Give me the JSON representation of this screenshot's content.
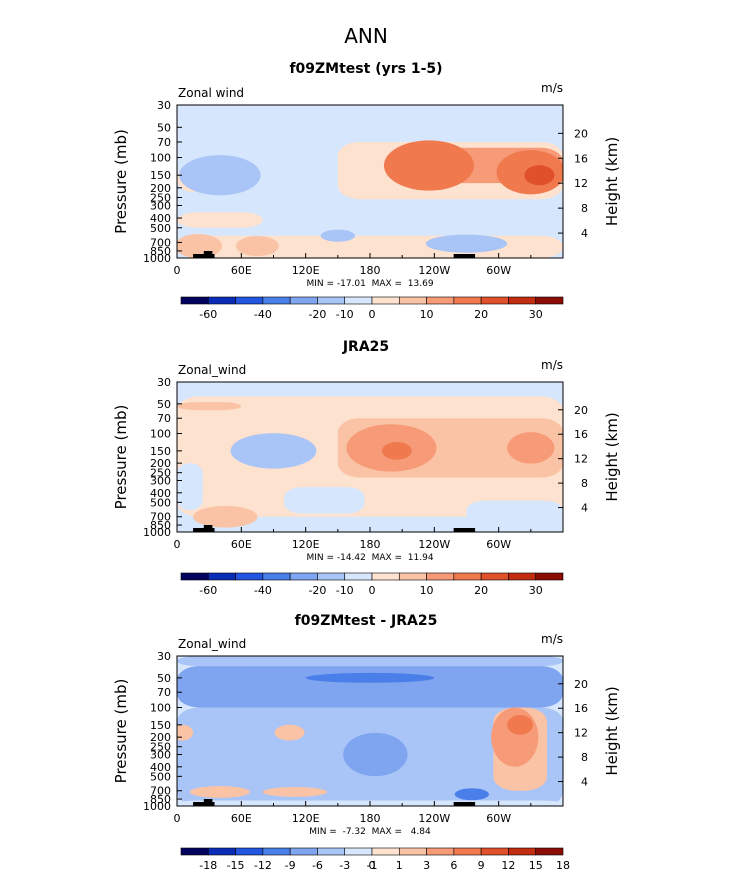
{
  "figure": {
    "title": "ANN"
  },
  "chart_data": [
    {
      "type": "heatmap",
      "title": "f09ZMtest (yrs 1-5)",
      "variable_label": "Zonal wind",
      "units": "m/s",
      "ylabel": "Pressure (mb)",
      "ylabel_right": "Height (km)",
      "x_ticks": [
        "0",
        "60E",
        "120E",
        "180",
        "120W",
        "60W"
      ],
      "x_tick_values": [
        0,
        60,
        120,
        180,
        240,
        300
      ],
      "x_range": [
        0,
        360
      ],
      "y_ticks": [
        "30",
        "50",
        "70",
        "100",
        "150",
        "200",
        "250",
        "300",
        "400",
        "500",
        "700",
        "850",
        "1000"
      ],
      "y_tick_values": [
        30,
        50,
        70,
        100,
        150,
        200,
        250,
        300,
        400,
        500,
        700,
        850,
        1000
      ],
      "y_range": [
        30,
        1000
      ],
      "y_scale": "log",
      "height_ticks": [
        "4",
        "8",
        "12",
        "16",
        "20"
      ],
      "height_tick_values": [
        4,
        8,
        12,
        16,
        20
      ],
      "stats": "MIN = -17.01  MAX =  13.69",
      "colorbar": {
        "colors": [
          "#03045e",
          "#0a2db8",
          "#2256e0",
          "#4a7ee8",
          "#7fa4f0",
          "#a9c4f6",
          "#d6e6fc",
          "#fde2cf",
          "#fbc3a5",
          "#f69a78",
          "#f07a4e",
          "#e0502a",
          "#c22c10",
          "#8b0c04"
        ],
        "labels": [
          "-60",
          "-40",
          "-20",
          "-10",
          "0",
          "10",
          "20",
          "30"
        ],
        "label_boundaries": [
          1,
          3,
          5,
          6,
          7,
          9,
          11,
          13
        ]
      },
      "features": [
        {
          "lon": 40,
          "p": 150,
          "dlon": 14,
          "dlogp": 0.09,
          "level": 4
        },
        {
          "lon": 40,
          "p": 150,
          "dlon": 38,
          "dlogp": 0.2,
          "level": 5
        },
        {
          "lon": 235,
          "p": 120,
          "dlon": 42,
          "dlogp": 0.25,
          "level": 10
        },
        {
          "lon": 330,
          "p": 140,
          "dlon": 32,
          "dlogp": 0.22,
          "level": 10
        },
        {
          "lon": 338,
          "p": 150,
          "dlon": 14,
          "dlogp": 0.1,
          "level": 11
        },
        {
          "lon": 20,
          "p": 760,
          "dlon": 22,
          "dlogp": 0.12,
          "level": 8
        },
        {
          "lon": 75,
          "p": 760,
          "dlon": 20,
          "dlogp": 0.1,
          "level": 8
        },
        {
          "lon": 270,
          "p": 720,
          "dlon": 38,
          "dlogp": 0.09,
          "level": 5
        },
        {
          "lon": 150,
          "p": 600,
          "dlon": 16,
          "dlogp": 0.06,
          "level": 5
        }
      ],
      "bands": [
        {
          "lon0": 150,
          "lon1": 360,
          "p0": 70,
          "p1": 260,
          "level": 7
        },
        {
          "lon0": 210,
          "lon1": 360,
          "p0": 80,
          "p1": 180,
          "level": 9
        },
        {
          "lon0": 0,
          "lon1": 360,
          "p0": 600,
          "p1": 1000,
          "level": 7
        },
        {
          "lon0": 0,
          "lon1": 80,
          "p0": 350,
          "p1": 500,
          "level": 7
        },
        {
          "lon0": 0,
          "lon1": 28,
          "p0": 120,
          "p1": 220,
          "level": 7
        }
      ]
    },
    {
      "type": "heatmap",
      "title": "JRA25",
      "variable_label": "Zonal_wind",
      "units": "m/s",
      "ylabel": "Pressure (mb)",
      "ylabel_right": "Height (km)",
      "x_ticks": [
        "0",
        "60E",
        "120E",
        "180",
        "120W",
        "60W"
      ],
      "x_tick_values": [
        0,
        60,
        120,
        180,
        240,
        300
      ],
      "x_range": [
        0,
        360
      ],
      "y_ticks": [
        "30",
        "50",
        "70",
        "100",
        "150",
        "200",
        "250",
        "300",
        "400",
        "500",
        "700",
        "850",
        "1000"
      ],
      "y_tick_values": [
        30,
        50,
        70,
        100,
        150,
        200,
        250,
        300,
        400,
        500,
        700,
        850,
        1000
      ],
      "y_range": [
        30,
        1000
      ],
      "y_scale": "log",
      "height_ticks": [
        "4",
        "8",
        "12",
        "16",
        "20"
      ],
      "height_tick_values": [
        4,
        8,
        12,
        16,
        20
      ],
      "stats": "MIN = -14.42  MAX =  11.94",
      "colorbar": {
        "colors": [
          "#03045e",
          "#0a2db8",
          "#2256e0",
          "#4a7ee8",
          "#7fa4f0",
          "#a9c4f6",
          "#d6e6fc",
          "#fde2cf",
          "#fbc3a5",
          "#f69a78",
          "#f07a4e",
          "#e0502a",
          "#c22c10",
          "#8b0c04"
        ],
        "labels": [
          "-60",
          "-40",
          "-20",
          "-10",
          "0",
          "10",
          "20",
          "30"
        ],
        "label_boundaries": [
          1,
          3,
          5,
          6,
          7,
          9,
          11,
          13
        ]
      },
      "features": [
        {
          "lon": 90,
          "p": 150,
          "dlon": 40,
          "dlogp": 0.18,
          "level": 5
        },
        {
          "lon": 200,
          "p": 140,
          "dlon": 42,
          "dlogp": 0.24,
          "level": 9
        },
        {
          "lon": 205,
          "p": 150,
          "dlon": 14,
          "dlogp": 0.09,
          "level": 10
        },
        {
          "lon": 330,
          "p": 140,
          "dlon": 22,
          "dlogp": 0.16,
          "level": 9
        },
        {
          "lon": 45,
          "p": 700,
          "dlon": 30,
          "dlogp": 0.11,
          "level": 8
        }
      ],
      "bands": [
        {
          "lon0": 0,
          "lon1": 360,
          "p0": 42,
          "p1": 700,
          "level": 7
        },
        {
          "lon0": 0,
          "lon1": 60,
          "p0": 48,
          "p1": 58,
          "level": 8
        },
        {
          "lon0": 150,
          "lon1": 360,
          "p0": 70,
          "p1": 280,
          "level": 8
        }
      ],
      "base_level": 6,
      "negative_patches": [
        {
          "lon0": 0,
          "lon1": 24,
          "p0": 200,
          "p1": 600
        },
        {
          "lon0": 100,
          "lon1": 175,
          "p0": 350,
          "p1": 650
        },
        {
          "lon0": 270,
          "lon1": 360,
          "p0": 480,
          "p1": 1000
        }
      ]
    },
    {
      "type": "heatmap",
      "title": "f09ZMtest - JRA25",
      "variable_label": "Zonal_wind",
      "units": "m/s",
      "ylabel": "Pressure (mb)",
      "ylabel_right": "Height (km)",
      "x_ticks": [
        "0",
        "60E",
        "120E",
        "180",
        "120W",
        "60W"
      ],
      "x_tick_values": [
        0,
        60,
        120,
        180,
        240,
        300
      ],
      "x_range": [
        0,
        360
      ],
      "y_ticks": [
        "30",
        "50",
        "70",
        "100",
        "150",
        "200",
        "250",
        "300",
        "400",
        "500",
        "700",
        "850",
        "1000"
      ],
      "y_tick_values": [
        30,
        50,
        70,
        100,
        150,
        200,
        250,
        300,
        400,
        500,
        700,
        850,
        1000
      ],
      "y_range": [
        30,
        1000
      ],
      "y_scale": "log",
      "height_ticks": [
        "4",
        "8",
        "12",
        "16",
        "20"
      ],
      "height_tick_values": [
        4,
        8,
        12,
        16,
        20
      ],
      "stats": "MIN =  -7.32  MAX =   4.84",
      "colorbar": {
        "colors": [
          "#03045e",
          "#0a2db8",
          "#2256e0",
          "#4a7ee8",
          "#7fa4f0",
          "#a9c4f6",
          "#d6e6fc",
          "#fde2cf",
          "#fbc3a5",
          "#f69a78",
          "#f07a4e",
          "#e0502a",
          "#c22c10",
          "#8b0c04"
        ],
        "labels": [
          "-18",
          "-15",
          "-12",
          "-9",
          "-6",
          "-3",
          "-1",
          "0",
          "1",
          "3",
          "6",
          "9",
          "12",
          "15",
          "18"
        ],
        "label_boundaries": [
          1,
          2,
          3,
          4,
          5,
          6,
          7,
          7,
          8,
          9,
          10,
          11,
          12,
          13,
          14
        ]
      },
      "features": [
        {
          "lon": 180,
          "p": 50,
          "dlon": 60,
          "dlogp": 0.05,
          "level": 3
        },
        {
          "lon": 185,
          "p": 300,
          "dlon": 30,
          "dlogp": 0.22,
          "level": 4
        },
        {
          "lon": 315,
          "p": 200,
          "dlon": 22,
          "dlogp": 0.3,
          "level": 9
        },
        {
          "lon": 320,
          "p": 150,
          "dlon": 12,
          "dlogp": 0.1,
          "level": 10
        },
        {
          "lon": 105,
          "p": 180,
          "dlon": 14,
          "dlogp": 0.08,
          "level": 8
        },
        {
          "lon": 5,
          "p": 180,
          "dlon": 10,
          "dlogp": 0.08,
          "level": 8
        },
        {
          "lon": 40,
          "p": 720,
          "dlon": 28,
          "dlogp": 0.06,
          "level": 8
        },
        {
          "lon": 110,
          "p": 720,
          "dlon": 30,
          "dlogp": 0.05,
          "level": 8
        },
        {
          "lon": 275,
          "p": 760,
          "dlon": 16,
          "dlogp": 0.06,
          "level": 3
        }
      ],
      "bands": [
        {
          "lon0": 0,
          "lon1": 360,
          "p0": 30,
          "p1": 38,
          "level": 5
        },
        {
          "lon0": 0,
          "lon1": 360,
          "p0": 38,
          "p1": 100,
          "level": 4
        },
        {
          "lon0": 0,
          "lon1": 360,
          "p0": 100,
          "p1": 1000,
          "level": 5
        },
        {
          "lon0": 295,
          "lon1": 345,
          "p0": 100,
          "p1": 700,
          "level": 8
        },
        {
          "lon0": 0,
          "lon1": 360,
          "p0": 880,
          "p1": 1000,
          "level": 6
        }
      ]
    }
  ]
}
